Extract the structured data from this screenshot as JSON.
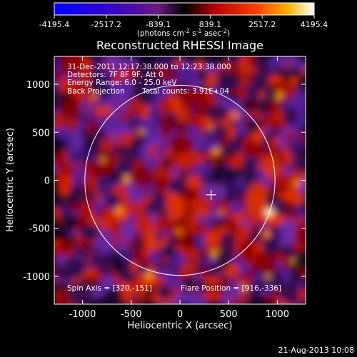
{
  "colorbar": {
    "ticks": [
      "-4195.4",
      "-2517.2",
      "-839.1",
      "839.1",
      "2517.2",
      "4195.4"
    ],
    "vmin": -4195.4,
    "vmax": 4195.4,
    "units_html": "(photons cm<tspan baseline-shift=\"super\" font-size=\"8\">-2</tspan> s<tspan baseline-shift=\"super\" font-size=\"8\">-1</tspan> asec<tspan baseline-shift=\"super\" font-size=\"8\">-2</tspan>)"
  },
  "chart_data": {
    "type": "heatmap",
    "title": "Reconstructed RHESSI Image",
    "xlabel": "Heliocentric X (arcsec)",
    "ylabel": "Heliocentric Y (arcsec)",
    "xlim": [
      -1290,
      1290
    ],
    "ylim": [
      -1290,
      1290
    ],
    "xticks": [
      -1000,
      -500,
      0,
      500,
      1000
    ],
    "yticks": [
      -1000,
      -500,
      0,
      500,
      1000
    ],
    "solar_limb_radius_arcsec": 976,
    "marker": {
      "x": 320,
      "y": -151,
      "shape": "plus"
    },
    "bright_spot": {
      "x": 916,
      "y": -336
    },
    "annotations": [
      "31-Dec-2011 12:17:38.000 to 12:23:38.000",
      "Detectors: 7F 8F 9F, Att 0",
      "Energy Range: 6.0 - 25.0 keV",
      "Back Projection",
      "Total counts: 3.91E+04",
      "Spin Axis = [320,-151]",
      "Flare Position = [916,-336]"
    ]
  },
  "footer": {
    "timestamp": "21-Aug-2013 10:08"
  }
}
